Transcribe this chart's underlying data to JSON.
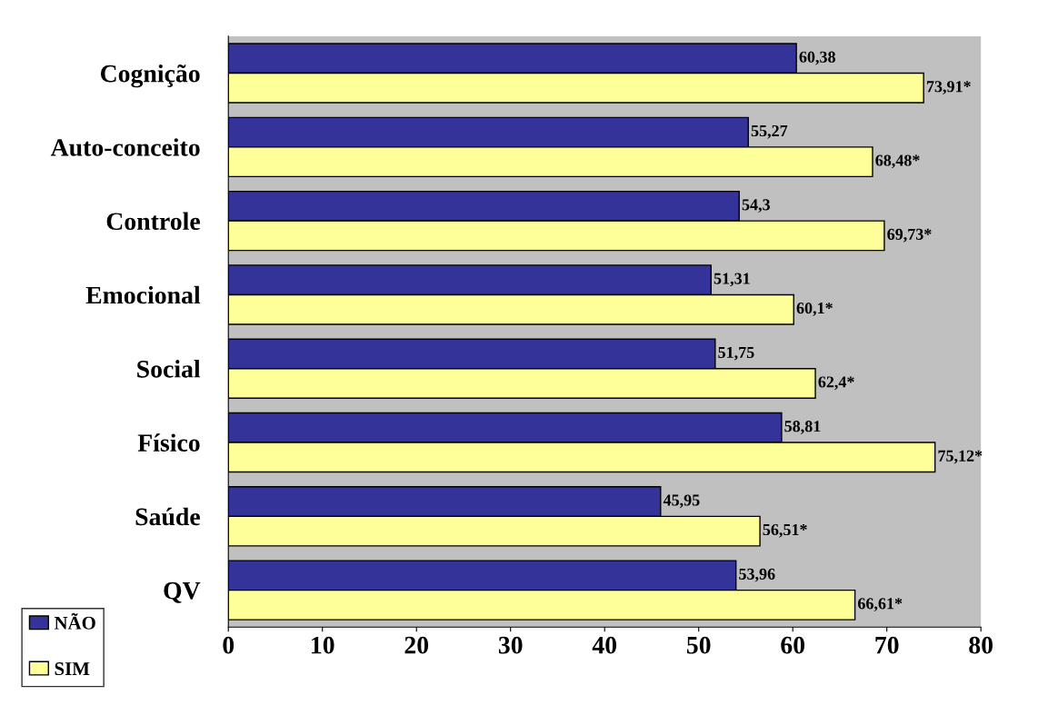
{
  "chart_data": {
    "type": "bar",
    "orientation": "horizontal",
    "categories": [
      "Cognição",
      "Auto-conceito",
      "Controle",
      "Emocional",
      "Social",
      "Físico",
      "Saúde",
      "QV"
    ],
    "series": [
      {
        "name": "NÃO",
        "color": "#333399",
        "values": [
          60.38,
          55.27,
          54.3,
          51.31,
          51.75,
          58.81,
          45.95,
          53.96
        ],
        "value_labels": [
          "60,38",
          "55,27",
          "54,3",
          "51,31",
          "51,75",
          "58,81",
          "45,95",
          "53,96"
        ]
      },
      {
        "name": "SIM",
        "color": "#ffff99",
        "values": [
          73.91,
          68.48,
          69.73,
          60.1,
          62.4,
          75.12,
          56.51,
          66.61
        ],
        "value_labels": [
          "73,91*",
          "68,48*",
          "69,73*",
          "60,1*",
          "62,4*",
          "75,12*",
          "56,51*",
          "66,61*"
        ]
      }
    ],
    "xlim": [
      0,
      80
    ],
    "xticks": [
      0,
      10,
      20,
      30,
      40,
      50,
      60,
      70,
      80
    ],
    "grid": false,
    "legend": "bottom left"
  }
}
